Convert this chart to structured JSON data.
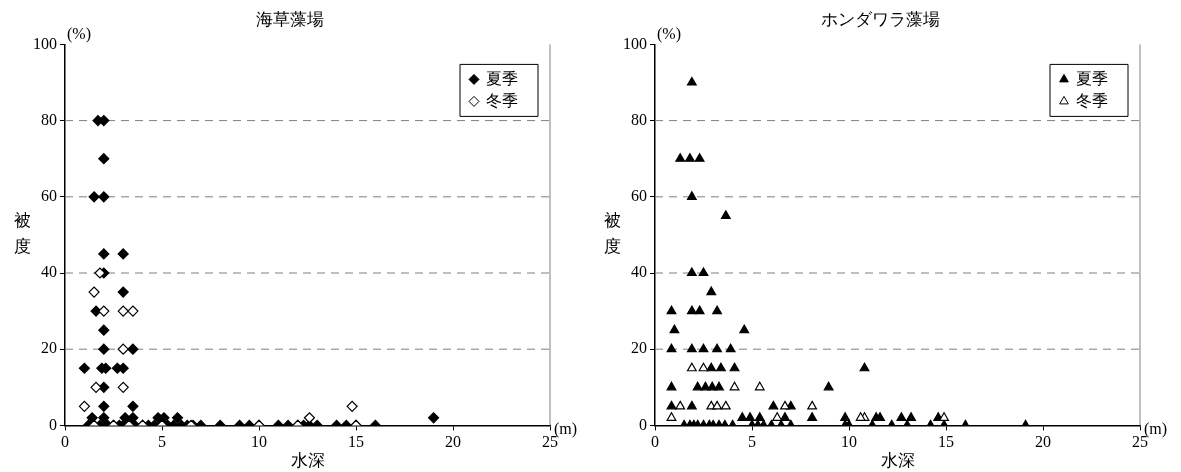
{
  "chart_data": [
    {
      "type": "scatter",
      "title": "海草藻場",
      "xlabel": "水深",
      "ylabel": "被度",
      "annotations": [
        "(%)",
        "(m)"
      ],
      "xlim": [
        0,
        25
      ],
      "xticks": [
        0,
        5,
        10,
        15,
        20,
        25
      ],
      "ylim": [
        0,
        100
      ],
      "yticks": [
        0,
        20,
        40,
        60,
        80,
        100
      ],
      "grid": "y",
      "legend": "top right",
      "marker": "diamond",
      "series": [
        {
          "name": "夏季",
          "color": "#000000",
          "x": [
            1.7,
            2.0,
            2.0,
            1.5,
            2.0,
            2.0,
            3.0,
            2.0,
            3.0,
            1.6,
            2.0,
            2.0,
            3.5,
            1.0,
            1.9,
            2.1,
            2.7,
            3.0,
            2.0,
            2.0,
            3.5,
            1.4,
            2.0,
            3.1,
            3.5,
            4.8,
            5.1,
            5.8,
            19.0,
            1.2,
            1.5,
            1.8,
            2.0,
            2.2,
            2.5,
            2.8,
            3.0,
            3.3,
            3.6,
            4.0,
            4.3,
            4.6,
            5.0,
            5.3,
            5.6,
            6.0,
            6.3,
            6.6,
            7.0,
            8.0,
            9.0,
            9.5,
            10.0,
            11.0,
            11.5,
            12.0,
            12.3,
            12.6,
            13.0,
            14.0,
            14.5,
            15.0,
            16.0
          ],
          "values": [
            80,
            80,
            70,
            60,
            60,
            45,
            45,
            40,
            35,
            30,
            25,
            20,
            20,
            15,
            15,
            15,
            15,
            15,
            10,
            5,
            5,
            2,
            2,
            2,
            2,
            2,
            2,
            2,
            2,
            0,
            0,
            0,
            0,
            0,
            0,
            0,
            0,
            0,
            0,
            0,
            0,
            0,
            0,
            0,
            0,
            0,
            0,
            0,
            0,
            0,
            0,
            0,
            0,
            0,
            0,
            0,
            0,
            0,
            0,
            0,
            0,
            0,
            0
          ]
        },
        {
          "name": "冬季",
          "color": "#ffffff",
          "x": [
            1.8,
            1.5,
            2.0,
            3.0,
            3.5,
            3.0,
            1.6,
            3.0,
            1.0,
            14.8,
            12.6,
            1.5,
            2.5,
            3.3,
            4.0,
            5.0,
            6.5,
            10.0,
            12.0,
            15.0
          ],
          "values": [
            40,
            35,
            30,
            30,
            30,
            20,
            10,
            10,
            5,
            5,
            2,
            0,
            0,
            0,
            0,
            0,
            0,
            0,
            0,
            0
          ]
        }
      ]
    },
    {
      "type": "scatter",
      "title": "ホンダワラ藻場",
      "xlabel": "水深",
      "ylabel": "被度",
      "annotations": [
        "(%)",
        "(m)"
      ],
      "xlim": [
        0,
        25
      ],
      "xticks": [
        0,
        5,
        10,
        15,
        20,
        25
      ],
      "ylim": [
        0,
        100
      ],
      "yticks": [
        0,
        20,
        40,
        60,
        80,
        100
      ],
      "grid": "y",
      "legend": "top right",
      "marker": "triangle",
      "series": [
        {
          "name": "夏季",
          "color": "#000000",
          "x": [
            1.9,
            1.3,
            1.8,
            2.3,
            1.9,
            3.65,
            1.9,
            2.5,
            2.9,
            0.85,
            1.9,
            2.3,
            3.2,
            1.0,
            4.6,
            0.85,
            1.9,
            2.5,
            3.2,
            3.9,
            2.9,
            3.4,
            4.1,
            10.8,
            0.85,
            2.2,
            2.6,
            2.95,
            3.3,
            8.95,
            0.85,
            1.9,
            6.1,
            7.0,
            4.5,
            4.9,
            5.4,
            6.7,
            8.1,
            9.8,
            11.4,
            11.6,
            12.7,
            13.2,
            14.6,
            1.5,
            1.8,
            2.0,
            2.2,
            2.5,
            2.8,
            3.0,
            3.3,
            3.6,
            4.0,
            5.0,
            5.3,
            5.6,
            6.0,
            6.5,
            7.0,
            9.8,
            10.0,
            11.2,
            12.2,
            13.0,
            14.2,
            14.9,
            16.0,
            19.1
          ],
          "values": [
            90,
            70,
            70,
            70,
            60,
            55,
            40,
            40,
            35,
            30,
            30,
            30,
            30,
            25,
            25,
            20,
            20,
            20,
            20,
            20,
            15,
            15,
            15,
            15,
            10,
            10,
            10,
            10,
            10,
            10,
            5,
            5,
            5,
            5,
            2,
            2,
            2,
            2,
            2,
            2,
            2,
            2,
            2,
            2,
            2,
            0,
            0,
            0,
            0,
            0,
            0,
            0,
            0,
            0,
            0,
            0,
            0,
            0,
            0,
            0,
            0,
            0,
            0,
            0,
            0,
            0,
            0,
            0,
            0,
            0
          ]
        },
        {
          "name": "冬季",
          "color": "#ffffff",
          "x": [
            1.9,
            2.5,
            4.1,
            5.4,
            1.3,
            2.9,
            3.2,
            3.65,
            6.7,
            8.1,
            0.85,
            6.3,
            10.8,
            10.6,
            14.9
          ],
          "values": [
            15,
            15,
            10,
            10,
            5,
            5,
            5,
            5,
            5,
            5,
            2,
            2,
            2,
            2,
            2
          ]
        }
      ]
    }
  ]
}
